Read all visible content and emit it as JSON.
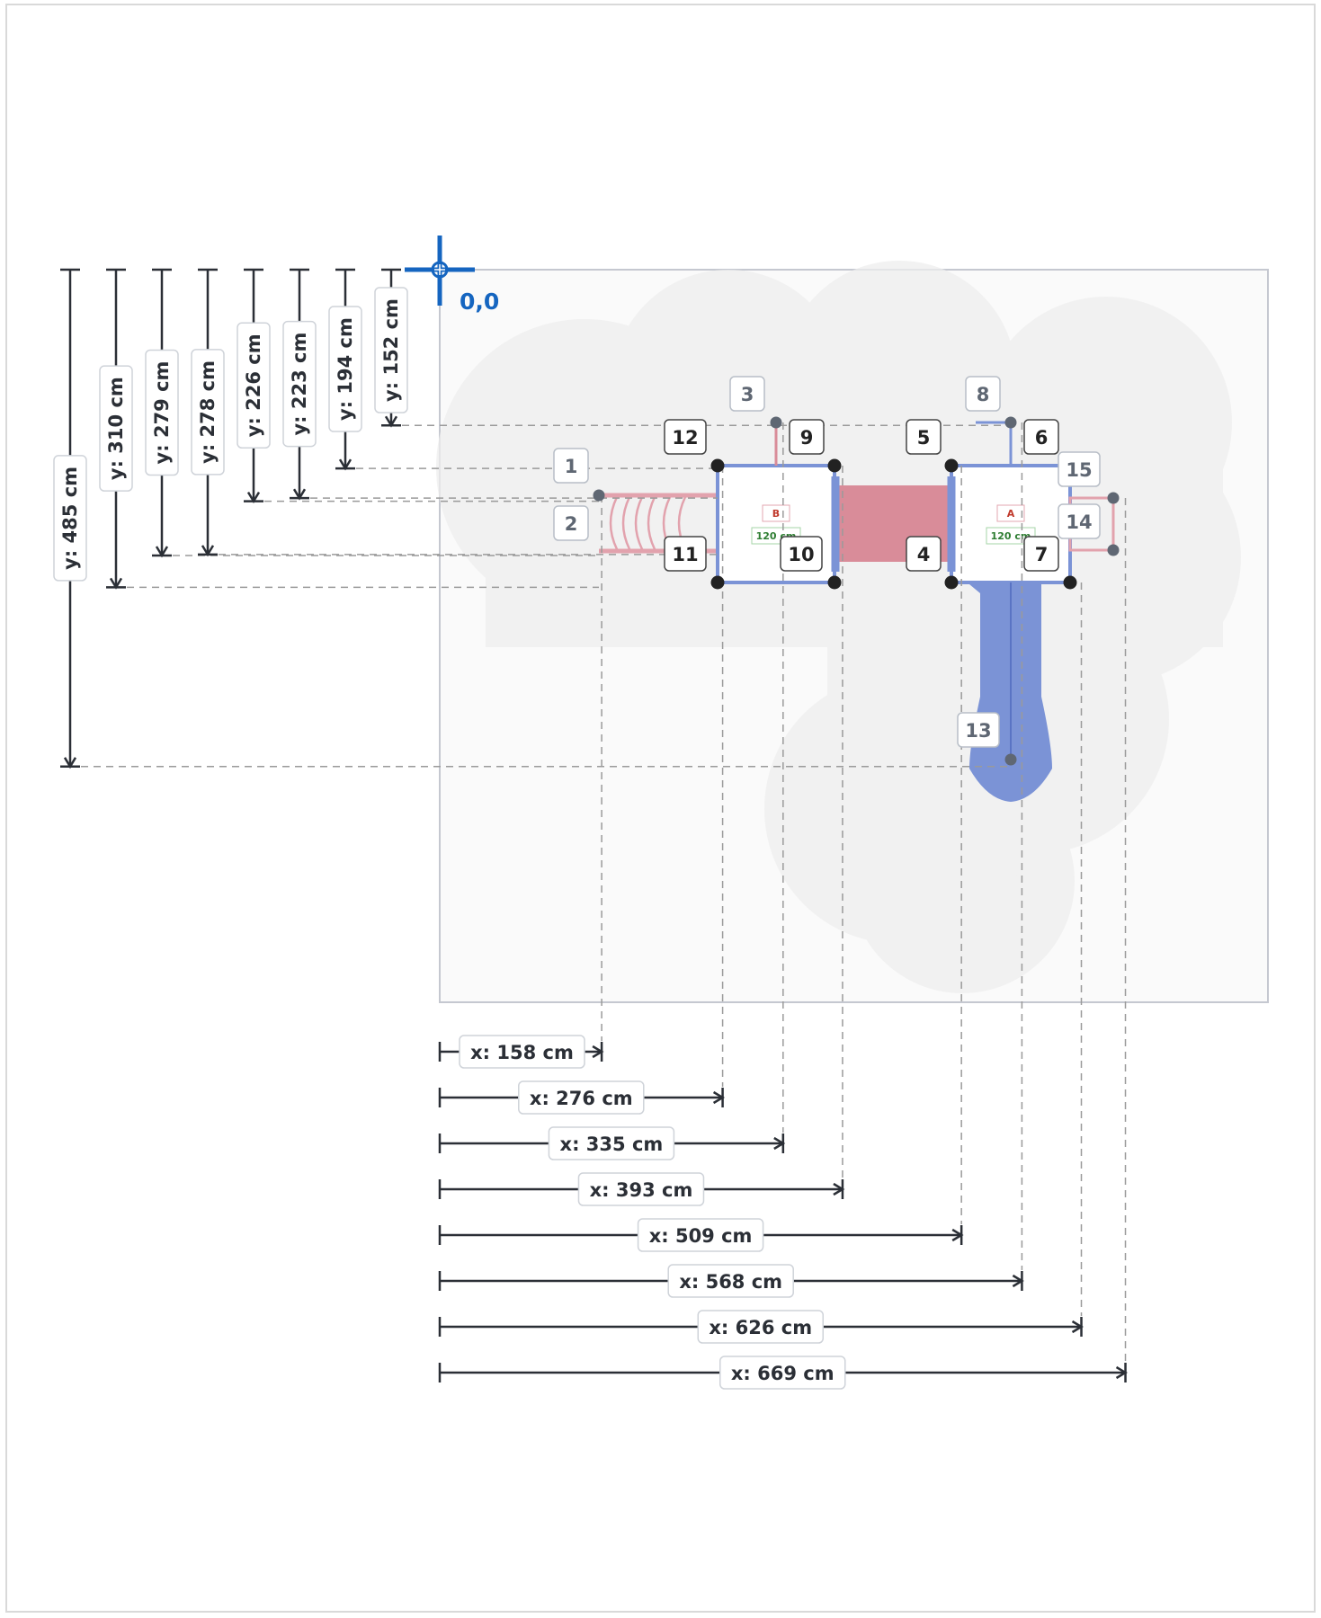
{
  "colors": {
    "accent_blue": "#1565c0",
    "structure_blue": "#7b93d6",
    "structure_red": "#d98c99",
    "ground": "#f5f5f5",
    "dim_line": "#2b2f36"
  },
  "origin_label": "0,0",
  "x_dimensions": [
    "x: 158 cm",
    "x: 276 cm",
    "x: 335 cm",
    "x: 393 cm",
    "x: 509 cm",
    "x: 568 cm",
    "x: 626 cm",
    "x: 669 cm"
  ],
  "y_dimensions": [
    "y: 485 cm",
    "y: 310 cm",
    "y: 279 cm",
    "y: 278 cm",
    "y: 226 cm",
    "y: 223 cm",
    "y: 194 cm",
    "y: 152 cm"
  ],
  "points": [
    {
      "label": "1",
      "style": "grey"
    },
    {
      "label": "2",
      "style": "grey"
    },
    {
      "label": "3",
      "style": "grey"
    },
    {
      "label": "4",
      "style": "dark"
    },
    {
      "label": "5",
      "style": "dark"
    },
    {
      "label": "6",
      "style": "dark"
    },
    {
      "label": "7",
      "style": "dark"
    },
    {
      "label": "8",
      "style": "grey"
    },
    {
      "label": "9",
      "style": "dark"
    },
    {
      "label": "10",
      "style": "dark"
    },
    {
      "label": "11",
      "style": "dark"
    },
    {
      "label": "12",
      "style": "dark"
    },
    {
      "label": "13",
      "style": "grey"
    },
    {
      "label": "14",
      "style": "grey"
    },
    {
      "label": "15",
      "style": "grey"
    }
  ],
  "platforms": [
    {
      "letter": "B",
      "height": "120 cm"
    },
    {
      "letter": "A",
      "height": "120 cm"
    }
  ]
}
